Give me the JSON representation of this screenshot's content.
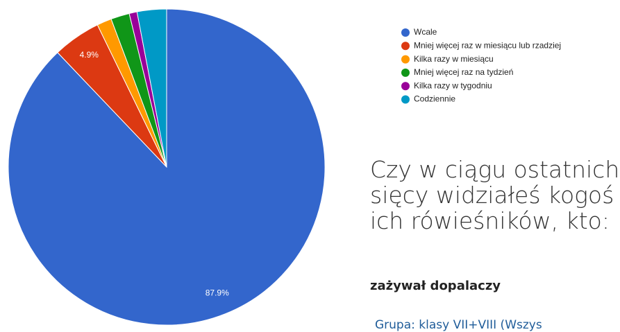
{
  "chart_data": {
    "type": "pie",
    "title_lines": [
      "Czy w ciągu ostatnich",
      "sięcy widziałeś kogoś",
      "ich rówieśników, kto:"
    ],
    "subtitle": "zażywał dopalaczy",
    "group": "Grupa: klasy VII+VIII (Wszys",
    "categories": [
      "Wcale",
      "Mniej więcej raz w miesiącu lub rzadziej",
      "Kilka razy w miesiącu",
      "Mniej więcej raz na tydzień",
      "Kilka razy w tygodniu",
      "Codziennie"
    ],
    "values": [
      87.9,
      4.9,
      1.5,
      1.9,
      0.8,
      3.0
    ],
    "value_labels": [
      "87.9%",
      "4.9%",
      null,
      null,
      null,
      null
    ],
    "colors": [
      "#3366cc",
      "#dc3912",
      "#ff9900",
      "#109618",
      "#990099",
      "#0099c6"
    ]
  }
}
